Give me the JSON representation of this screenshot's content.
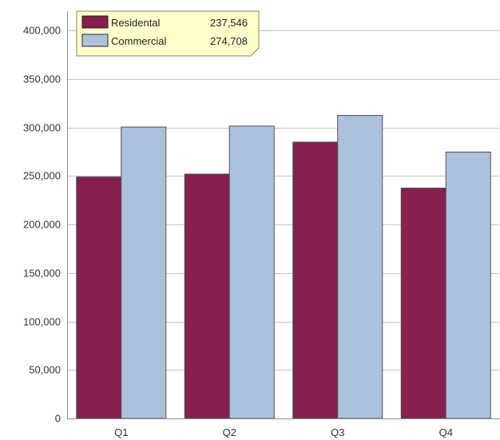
{
  "chart_data": {
    "type": "bar",
    "title": "",
    "xlabel": "",
    "ylabel": "",
    "categories": [
      "Q1",
      "Q2",
      "Q3",
      "Q4"
    ],
    "series": [
      {
        "name": "Residental",
        "color": "#85204f",
        "values": [
          249000,
          252000,
          285000,
          237546
        ]
      },
      {
        "name": "Commercial",
        "color": "#aec1dc",
        "values": [
          300500,
          301500,
          312500,
          274708
        ]
      }
    ],
    "ylim": [
      0,
      420000
    ],
    "yticks": [
      0,
      50000,
      100000,
      150000,
      200000,
      250000,
      300000,
      350000,
      400000
    ],
    "ytick_labels": [
      "0",
      "50,000",
      "100,000",
      "150,000",
      "200,000",
      "250,000",
      "300,000",
      "350,000",
      "400,000"
    ],
    "grid": true,
    "tooltip": {
      "category": "Q4",
      "rows": [
        {
          "series": "Residental",
          "value": "237,546"
        },
        {
          "series": "Commercial",
          "value": "274,708"
        }
      ]
    }
  }
}
